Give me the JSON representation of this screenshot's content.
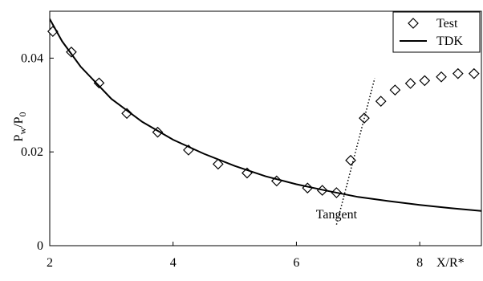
{
  "chart_data": {
    "type": "scatter",
    "xlabel": "X/R*",
    "ylabel": "P",
    "ylabel_sub1": "w",
    "ylabel_slash": "/P",
    "ylabel_sub2": "0",
    "xlim": [
      2,
      9
    ],
    "ylim": [
      0,
      0.05
    ],
    "x_ticks": [
      {
        "value": 2,
        "label": "2"
      },
      {
        "value": 4,
        "label": "4"
      },
      {
        "value": 6,
        "label": "6"
      },
      {
        "value": 8,
        "label": "8"
      }
    ],
    "y_ticks": [
      {
        "value": 0,
        "label": "0"
      },
      {
        "value": 0.02,
        "label": "0.02"
      },
      {
        "value": 0.04,
        "label": "0.04"
      }
    ],
    "series": [
      {
        "name": "Test",
        "marker": "diamond",
        "color": "#000000",
        "points": [
          {
            "x": 2.05,
            "y": 0.0457
          },
          {
            "x": 2.35,
            "y": 0.0413
          },
          {
            "x": 2.8,
            "y": 0.0347
          },
          {
            "x": 3.25,
            "y": 0.0282
          },
          {
            "x": 3.75,
            "y": 0.0242
          },
          {
            "x": 4.25,
            "y": 0.0204
          },
          {
            "x": 4.73,
            "y": 0.0174
          },
          {
            "x": 5.2,
            "y": 0.0155
          },
          {
            "x": 5.68,
            "y": 0.0138
          },
          {
            "x": 6.18,
            "y": 0.0123
          },
          {
            "x": 6.42,
            "y": 0.0118
          },
          {
            "x": 6.65,
            "y": 0.0113
          },
          {
            "x": 6.88,
            "y": 0.0182
          },
          {
            "x": 7.1,
            "y": 0.0272
          },
          {
            "x": 7.37,
            "y": 0.0308
          },
          {
            "x": 7.6,
            "y": 0.0332
          },
          {
            "x": 7.85,
            "y": 0.0346
          },
          {
            "x": 8.08,
            "y": 0.0352
          },
          {
            "x": 8.35,
            "y": 0.036
          },
          {
            "x": 8.62,
            "y": 0.0367
          },
          {
            "x": 8.88,
            "y": 0.0367
          }
        ]
      },
      {
        "name": "TDK",
        "marker": "line",
        "color": "#000000",
        "points": [
          {
            "x": 1.95,
            "y": 0.0495
          },
          {
            "x": 2.2,
            "y": 0.0436
          },
          {
            "x": 2.5,
            "y": 0.0382
          },
          {
            "x": 3.0,
            "y": 0.0313
          },
          {
            "x": 3.5,
            "y": 0.0264
          },
          {
            "x": 4.0,
            "y": 0.0226
          },
          {
            "x": 4.5,
            "y": 0.0196
          },
          {
            "x": 5.0,
            "y": 0.017
          },
          {
            "x": 5.5,
            "y": 0.0148
          },
          {
            "x": 6.0,
            "y": 0.0131
          },
          {
            "x": 6.5,
            "y": 0.0117
          },
          {
            "x": 7.0,
            "y": 0.0104
          },
          {
            "x": 7.5,
            "y": 0.0095
          },
          {
            "x": 8.0,
            "y": 0.0087
          },
          {
            "x": 8.5,
            "y": 0.008
          },
          {
            "x": 9.0,
            "y": 0.0074
          }
        ]
      }
    ],
    "annotations": [
      {
        "text": "Tangent",
        "line_style": "dotted",
        "line_start": {
          "x": 6.65,
          "y": 0.0045
        },
        "line_end": {
          "x": 7.27,
          "y": 0.0357
        },
        "label_anchor": {
          "x": 6.65,
          "y": 0.0058
        }
      }
    ],
    "legend": {
      "placement": "top-right"
    },
    "grid": false
  }
}
